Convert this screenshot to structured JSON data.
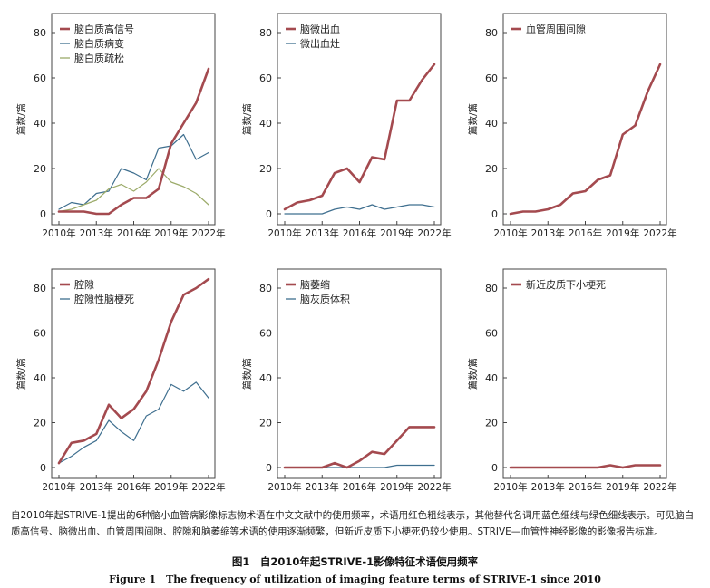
{
  "colors": {
    "red": "#a44a4f",
    "blue": "#3f6f8f",
    "green": "#9cab6a",
    "axis": "#444444"
  },
  "chart_data": [
    {
      "type": "line",
      "x": [
        2010,
        2011,
        2012,
        2013,
        2014,
        2015,
        2016,
        2017,
        2018,
        2019,
        2020,
        2021,
        2022
      ],
      "series": [
        {
          "name": "脑白质高信号",
          "color": "red",
          "values": [
            1,
            1,
            1,
            0,
            0,
            4,
            7,
            7,
            11,
            31,
            40,
            49,
            64
          ]
        },
        {
          "name": "脑白质病变",
          "color": "blue",
          "values": [
            2,
            5,
            4,
            9,
            10,
            20,
            18,
            15,
            29,
            30,
            35,
            24,
            27
          ]
        },
        {
          "name": "脑白质疏松",
          "color": "green",
          "values": [
            1,
            2,
            4,
            6,
            11,
            13,
            10,
            14,
            20,
            14,
            12,
            9,
            4
          ]
        }
      ],
      "ylabel": "篇数/篇",
      "ylim": [
        0,
        80
      ],
      "yticks": [
        0,
        20,
        40,
        60,
        80
      ],
      "xticks": [
        "2010年",
        "2013年",
        "2016年",
        "2019年",
        "2022年"
      ],
      "legend": "top-left"
    },
    {
      "type": "line",
      "x": [
        2010,
        2011,
        2012,
        2013,
        2014,
        2015,
        2016,
        2017,
        2018,
        2019,
        2020,
        2021,
        2022
      ],
      "series": [
        {
          "name": "脑微出血",
          "color": "red",
          "values": [
            2,
            5,
            6,
            8,
            18,
            20,
            14,
            25,
            24,
            50,
            50,
            59,
            66
          ]
        },
        {
          "name": "微出血灶",
          "color": "blue",
          "values": [
            0,
            0,
            0,
            0,
            2,
            3,
            2,
            4,
            2,
            3,
            4,
            4,
            3
          ]
        }
      ],
      "ylabel": "篇数/篇",
      "ylim": [
        0,
        80
      ],
      "yticks": [
        0,
        20,
        40,
        60,
        80
      ],
      "xticks": [
        "2010年",
        "2013年",
        "2016年",
        "2019年",
        "2022年"
      ],
      "legend": "top-left"
    },
    {
      "type": "line",
      "x": [
        2010,
        2011,
        2012,
        2013,
        2014,
        2015,
        2016,
        2017,
        2018,
        2019,
        2020,
        2021,
        2022
      ],
      "series": [
        {
          "name": "血管周围间隙",
          "color": "red",
          "values": [
            0,
            1,
            1,
            2,
            4,
            9,
            10,
            15,
            17,
            35,
            39,
            54,
            66
          ]
        }
      ],
      "ylabel": "篇数/篇",
      "ylim": [
        0,
        80
      ],
      "yticks": [
        0,
        20,
        40,
        60,
        80
      ],
      "xticks": [
        "2010年",
        "2013年",
        "2016年",
        "2019年",
        "2022年"
      ],
      "legend": "top-left"
    },
    {
      "type": "line",
      "x": [
        2010,
        2011,
        2012,
        2013,
        2014,
        2015,
        2016,
        2017,
        2018,
        2019,
        2020,
        2021,
        2022
      ],
      "series": [
        {
          "name": "腔隙",
          "color": "red",
          "values": [
            2,
            11,
            12,
            15,
            28,
            22,
            26,
            34,
            48,
            65,
            77,
            80,
            84
          ]
        },
        {
          "name": "腔隙性脑梗死",
          "color": "blue",
          "values": [
            2,
            5,
            9,
            12,
            21,
            16,
            12,
            23,
            26,
            37,
            34,
            38,
            31
          ]
        }
      ],
      "ylabel": "篇数/篇",
      "ylim": [
        0,
        80
      ],
      "yticks": [
        0,
        20,
        40,
        60,
        80
      ],
      "xticks": [
        "2010年",
        "2013年",
        "2016年",
        "2019年",
        "2022年"
      ],
      "legend": "top-left"
    },
    {
      "type": "line",
      "x": [
        2010,
        2011,
        2012,
        2013,
        2014,
        2015,
        2016,
        2017,
        2018,
        2019,
        2020,
        2021,
        2022
      ],
      "series": [
        {
          "name": "脑萎缩",
          "color": "red",
          "values": [
            0,
            0,
            0,
            0,
            2,
            0,
            3,
            7,
            6,
            12,
            18,
            18,
            18
          ]
        },
        {
          "name": "脑灰质体积",
          "color": "blue",
          "values": [
            0,
            0,
            0,
            0,
            0,
            0,
            0,
            0,
            0,
            1,
            1,
            1,
            1
          ]
        }
      ],
      "ylabel": "篇数/篇",
      "ylim": [
        0,
        80
      ],
      "yticks": [
        0,
        20,
        40,
        60,
        80
      ],
      "xticks": [
        "2010年",
        "2013年",
        "2016年",
        "2019年",
        "2022年"
      ],
      "legend": "top-left"
    },
    {
      "type": "line",
      "x": [
        2010,
        2011,
        2012,
        2013,
        2014,
        2015,
        2016,
        2017,
        2018,
        2019,
        2020,
        2021,
        2022
      ],
      "series": [
        {
          "name": "新近皮质下小梗死",
          "color": "red",
          "values": [
            0,
            0,
            0,
            0,
            0,
            0,
            0,
            0,
            1,
            0,
            1,
            1,
            1
          ]
        }
      ],
      "ylabel": "篇数/篇",
      "ylim": [
        0,
        80
      ],
      "yticks": [
        0,
        20,
        40,
        60,
        80
      ],
      "xticks": [
        "2010年",
        "2013年",
        "2016年",
        "2019年",
        "2022年"
      ],
      "legend": "top-left"
    }
  ],
  "caption": "自2010年起STRIVE-1提出的6种脑小血管病影像标志物术语在中文文献中的使用频率，术语用红色粗线表示，其他替代名词用蓝色细线与绿色细线表示。可见脑白质高信号、脑微出血、血管周围间隙、腔隙和脑萎缩等术语的使用逐渐频繁，但新近皮质下小梗死仍较少使用。STRIVE—血管性神经影像的影像报告标准。",
  "figure_title_zh": "图1　自2010年起STRIVE-1影像特征术语使用频率",
  "figure_title_en": "Figure 1　The frequency of utilization of imaging feature terms of STRIVE-1 since 2010"
}
